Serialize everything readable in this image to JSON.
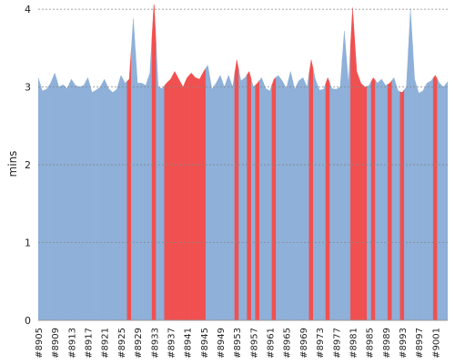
{
  "chart_data": {
    "type": "area",
    "y_label": "mins",
    "categories": [
      "#8905",
      null,
      null,
      null,
      "#8909",
      null,
      null,
      null,
      "#8913",
      null,
      null,
      null,
      "#8917",
      null,
      null,
      null,
      "#8921",
      null,
      null,
      null,
      "#8925",
      null,
      null,
      null,
      "#8929",
      null,
      null,
      null,
      "#8933",
      null,
      null,
      null,
      "#8937",
      null,
      null,
      null,
      "#8941",
      null,
      null,
      null,
      "#8945",
      null,
      null,
      null,
      "#8949",
      null,
      null,
      null,
      "#8953",
      null,
      null,
      null,
      "#8957",
      null,
      null,
      null,
      "#8961",
      null,
      null,
      null,
      "#8965",
      null,
      null,
      null,
      "#8969",
      null,
      null,
      null,
      "#8973",
      null,
      null,
      null,
      "#8977",
      null,
      null,
      null,
      "#8981",
      null,
      null,
      null,
      "#8985",
      null,
      null,
      null,
      "#8989",
      null,
      null,
      null,
      "#8993",
      null,
      null,
      null,
      "#8997",
      null,
      null,
      null,
      "#9001",
      null,
      null,
      null
    ],
    "values": [
      3.12,
      2.95,
      2.97,
      3.05,
      3.18,
      3.0,
      3.03,
      2.98,
      3.1,
      3.02,
      3.0,
      3.02,
      3.12,
      2.93,
      2.96,
      3.0,
      3.1,
      2.98,
      2.93,
      2.97,
      3.15,
      3.05,
      3.1,
      3.88,
      3.05,
      3.05,
      3.02,
      3.18,
      4.1,
      3.0,
      2.98,
      3.05,
      3.1,
      3.2,
      3.1,
      3.0,
      3.12,
      3.18,
      3.12,
      3.1,
      3.2,
      3.28,
      2.97,
      3.05,
      3.15,
      3.0,
      3.15,
      3.0,
      3.35,
      3.08,
      3.12,
      3.2,
      3.0,
      3.05,
      3.12,
      2.98,
      2.95,
      3.1,
      3.15,
      3.08,
      2.98,
      3.2,
      2.97,
      3.08,
      3.12,
      3.0,
      3.35,
      3.1,
      2.96,
      2.97,
      3.12,
      2.98,
      2.97,
      3.0,
      3.72,
      3.05,
      4.02,
      3.2,
      3.05,
      3.0,
      3.02,
      3.12,
      3.05,
      3.1,
      3.02,
      3.05,
      3.12,
      2.95,
      2.93,
      3.0,
      4.0,
      3.1,
      2.92,
      2.95,
      3.05,
      3.08,
      3.15,
      3.05,
      3.0,
      3.07
    ],
    "colors": [
      "#8eb0d9",
      "#8eb0d9",
      "#8eb0d9",
      "#8eb0d9",
      "#8eb0d9",
      "#8eb0d9",
      "#8eb0d9",
      "#8eb0d9",
      "#8eb0d9",
      "#8eb0d9",
      "#8eb0d9",
      "#8eb0d9",
      "#8eb0d9",
      "#8eb0d9",
      "#8eb0d9",
      "#8eb0d9",
      "#8eb0d9",
      "#8eb0d9",
      "#8eb0d9",
      "#8eb0d9",
      "#8eb0d9",
      "#8eb0d9",
      "#f05050",
      "#8eb0d9",
      "#8eb0d9",
      "#8eb0d9",
      "#8eb0d9",
      "#8eb0d9",
      "#f05050",
      "#8eb0d9",
      "#8eb0d9",
      "#f05050",
      "#f05050",
      "#f05050",
      "#f05050",
      "#f05050",
      "#f05050",
      "#f05050",
      "#f05050",
      "#f05050",
      "#f05050",
      "#8eb0d9",
      "#8eb0d9",
      "#8eb0d9",
      "#8eb0d9",
      "#8eb0d9",
      "#8eb0d9",
      "#8eb0d9",
      "#f05050",
      "#8eb0d9",
      "#8eb0d9",
      "#f05050",
      "#8eb0d9",
      "#f05050",
      "#8eb0d9",
      "#8eb0d9",
      "#8eb0d9",
      "#f05050",
      "#8eb0d9",
      "#8eb0d9",
      "#8eb0d9",
      "#8eb0d9",
      "#8eb0d9",
      "#8eb0d9",
      "#8eb0d9",
      "#8eb0d9",
      "#f05050",
      "#8eb0d9",
      "#8eb0d9",
      "#8eb0d9",
      "#f05050",
      "#8eb0d9",
      "#8eb0d9",
      "#8eb0d9",
      "#8eb0d9",
      "#8eb0d9",
      "#f05050",
      "#f05050",
      "#f05050",
      "#f05050",
      "#8eb0d9",
      "#f05050",
      "#8eb0d9",
      "#8eb0d9",
      "#8eb0d9",
      "#f05050",
      "#8eb0d9",
      "#8eb0d9",
      "#f05050",
      "#8eb0d9",
      "#8eb0d9",
      "#8eb0d9",
      "#8eb0d9",
      "#8eb0d9",
      "#8eb0d9",
      "#8eb0d9",
      "#f05050",
      "#8eb0d9",
      "#8eb0d9",
      "#8eb0d9"
    ],
    "ylim": [
      0,
      4.06
    ],
    "yticks": [
      0,
      1,
      2,
      3,
      4
    ],
    "grid": true
  }
}
